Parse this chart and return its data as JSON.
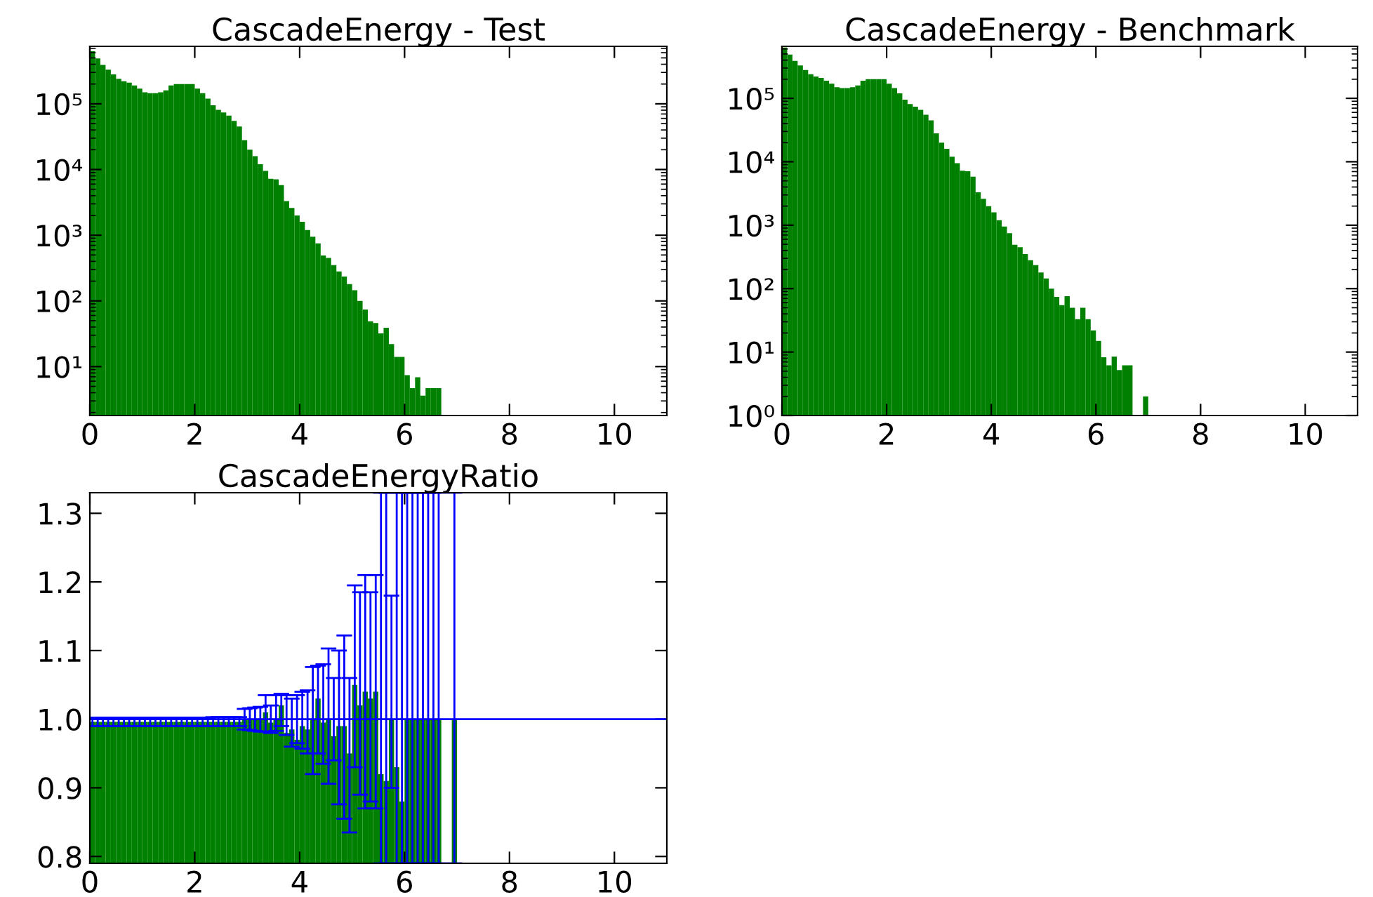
{
  "chart_data": [
    {
      "type": "histogram",
      "title": "CascadeEnergy - Test",
      "color": "#008000",
      "log": "y",
      "bins": [
        0,
        0.1,
        0.2,
        0.3,
        0.4,
        0.5,
        0.6,
        0.7,
        0.8,
        0.9,
        1.0,
        1.1,
        1.2,
        1.3,
        1.4,
        1.5,
        1.6,
        1.7,
        1.8,
        1.9,
        2.0,
        2.1,
        2.2,
        2.3,
        2.4,
        2.5,
        2.6,
        2.7,
        2.8,
        2.9,
        3.0,
        3.1,
        3.2,
        3.3,
        3.4,
        3.5,
        3.6,
        3.7,
        3.8,
        3.9,
        4.0,
        4.1,
        4.2,
        4.3,
        4.4,
        4.5,
        4.6,
        4.7,
        4.8,
        4.9,
        5.0,
        5.1,
        5.2,
        5.3,
        5.4,
        5.5,
        5.6,
        5.7,
        5.8,
        5.9,
        6.0,
        6.1,
        6.2,
        6.3,
        6.4,
        6.5,
        6.6,
        6.7,
        6.8,
        6.9,
        7.0
      ],
      "values": [
        630000,
        490000,
        390000,
        330000,
        280000,
        240000,
        220000,
        210000,
        190000,
        170000,
        150000,
        145000,
        145000,
        150000,
        160000,
        190000,
        200000,
        200000,
        200000,
        200000,
        170000,
        145000,
        120000,
        95000,
        81000,
        74000,
        66000,
        55000,
        45000,
        28000,
        20000,
        16000,
        12000,
        9500,
        7200,
        7100,
        5800,
        3300,
        2600,
        2000,
        1600,
        1200,
        950,
        750,
        490,
        450,
        350,
        280,
        235,
        180,
        145,
        100,
        74,
        49,
        46,
        32,
        39,
        22,
        14,
        14,
        7.4,
        4.7,
        6.9,
        3.6,
        4.7,
        4.7,
        4.7,
        null,
        null,
        null
      ],
      "xlim": [
        0,
        11
      ],
      "xticks": [
        0,
        2,
        4,
        6,
        8,
        10
      ],
      "ylim": [
        1.8,
        750000
      ],
      "yticks": [
        {
          "value": 10,
          "label": "10¹"
        },
        {
          "value": 100,
          "label": "10²"
        },
        {
          "value": 1000,
          "label": "10³"
        },
        {
          "value": 10000,
          "label": "10⁴"
        },
        {
          "value": 100000,
          "label": "10⁵"
        }
      ],
      "grid": false,
      "legend": false
    },
    {
      "type": "histogram",
      "title": "CascadeEnergy - Benchmark",
      "color": "#008000",
      "log": "y",
      "bins": [
        0,
        0.1,
        0.2,
        0.3,
        0.4,
        0.5,
        0.6,
        0.7,
        0.8,
        0.9,
        1.0,
        1.1,
        1.2,
        1.3,
        1.4,
        1.5,
        1.6,
        1.7,
        1.8,
        1.9,
        2.0,
        2.1,
        2.2,
        2.3,
        2.4,
        2.5,
        2.6,
        2.7,
        2.8,
        2.9,
        3.0,
        3.1,
        3.2,
        3.3,
        3.4,
        3.5,
        3.6,
        3.7,
        3.8,
        3.9,
        4.0,
        4.1,
        4.2,
        4.3,
        4.4,
        4.5,
        4.6,
        4.7,
        4.8,
        4.9,
        5.0,
        5.1,
        5.2,
        5.3,
        5.4,
        5.5,
        5.6,
        5.7,
        5.8,
        5.9,
        6.0,
        6.1,
        6.2,
        6.3,
        6.4,
        6.5,
        6.6,
        6.7,
        6.8,
        6.9,
        7.0
      ],
      "values": [
        630000,
        490000,
        390000,
        330000,
        280000,
        240000,
        220000,
        210000,
        190000,
        170000,
        150000,
        145000,
        145000,
        150000,
        160000,
        190000,
        200000,
        200000,
        200000,
        200000,
        170000,
        145000,
        120000,
        95000,
        81000,
        74000,
        66000,
        55000,
        45000,
        28000,
        20000,
        16000,
        12000,
        9500,
        7200,
        7100,
        5800,
        3300,
        2600,
        2000,
        1600,
        1200,
        950,
        750,
        490,
        450,
        350,
        280,
        235,
        180,
        145,
        100,
        74,
        55,
        76,
        50,
        33,
        50,
        33,
        22,
        15,
        8.3,
        6.2,
        8.5,
        5.2,
        6.2,
        6.2,
        null,
        null,
        2
      ],
      "xlim": [
        0,
        11
      ],
      "xticks": [
        0,
        2,
        4,
        6,
        8,
        10
      ],
      "ylim": [
        1,
        660000
      ],
      "yticks": [
        {
          "value": 1,
          "label": "10⁰"
        },
        {
          "value": 10,
          "label": "10¹"
        },
        {
          "value": 100,
          "label": "10²"
        },
        {
          "value": 1000,
          "label": "10³"
        },
        {
          "value": 10000,
          "label": "10⁴"
        },
        {
          "value": 100000,
          "label": "10⁵"
        }
      ],
      "grid": false,
      "legend": false
    },
    {
      "type": "histogram",
      "title": "CascadeEnergyRatio",
      "color": "#008000",
      "bins": [
        0,
        0.1,
        0.2,
        0.3,
        0.4,
        0.5,
        0.6,
        0.7,
        0.8,
        0.9,
        1.0,
        1.1,
        1.2,
        1.3,
        1.4,
        1.5,
        1.6,
        1.7,
        1.8,
        1.9,
        2.0,
        2.1,
        2.2,
        2.3,
        2.4,
        2.5,
        2.6,
        2.7,
        2.8,
        2.9,
        3.0,
        3.1,
        3.2,
        3.3,
        3.4,
        3.5,
        3.6,
        3.7,
        3.8,
        3.9,
        4.0,
        4.1,
        4.2,
        4.3,
        4.4,
        4.5,
        4.6,
        4.7,
        4.8,
        4.9,
        5.0,
        5.1,
        5.2,
        5.3,
        5.4,
        5.5,
        5.6,
        5.7,
        5.8,
        5.9,
        6.0,
        6.1,
        6.2,
        6.3,
        6.4,
        6.5,
        6.6,
        6.7,
        6.8,
        6.9,
        7.0
      ],
      "values": [
        0.996,
        0.996,
        0.996,
        0.996,
        0.996,
        0.996,
        0.996,
        0.996,
        0.996,
        0.996,
        0.996,
        0.996,
        0.996,
        0.996,
        0.996,
        0.996,
        0.996,
        0.996,
        0.996,
        0.996,
        0.996,
        0.996,
        0.996,
        0.996,
        0.996,
        0.996,
        0.996,
        0.996,
        0.996,
        1.0,
        1.0,
        1.0,
        1.0,
        1.01,
        0.995,
        1.0,
        1.02,
        0.98,
        0.985,
        0.97,
        0.99,
        0.985,
        1.0,
        1.03,
        0.995,
        1.0,
        0.975,
        0.99,
        0.99,
        0.95,
        1.05,
        1.02,
        1.04,
        1.03,
        1.04,
        0.92,
        0.91,
        1.0,
        0.93,
        0.88,
        1.0,
        1.0,
        1.0,
        1.0,
        1.0,
        1.0,
        1.0,
        null,
        null,
        1.0
      ],
      "errors": [
        [
          0.99,
          1.002
        ],
        [
          0.99,
          1.002
        ],
        [
          0.99,
          1.002
        ],
        [
          0.99,
          1.002
        ],
        [
          0.99,
          1.002
        ],
        [
          0.99,
          1.002
        ],
        [
          0.99,
          1.002
        ],
        [
          0.99,
          1.002
        ],
        [
          0.99,
          1.002
        ],
        [
          0.99,
          1.002
        ],
        [
          0.99,
          1.002
        ],
        [
          0.99,
          1.002
        ],
        [
          0.99,
          1.002
        ],
        [
          0.99,
          1.002
        ],
        [
          0.99,
          1.002
        ],
        [
          0.99,
          1.002
        ],
        [
          0.99,
          1.002
        ],
        [
          0.99,
          1.002
        ],
        [
          0.99,
          1.002
        ],
        [
          0.99,
          1.002
        ],
        [
          0.99,
          1.002
        ],
        [
          0.99,
          1.002
        ],
        [
          0.99,
          1.002
        ],
        [
          0.99,
          1.003
        ],
        [
          0.99,
          1.003
        ],
        [
          0.99,
          1.003
        ],
        [
          0.99,
          1.003
        ],
        [
          0.99,
          1.003
        ],
        [
          0.99,
          1.003
        ],
        [
          0.985,
          1.015
        ],
        [
          0.984,
          1.016
        ],
        [
          0.983,
          1.017
        ],
        [
          0.982,
          1.018
        ],
        [
          0.982,
          1.035
        ],
        [
          0.98,
          1.02
        ],
        [
          0.983,
          1.035
        ],
        [
          0.99,
          1.037
        ],
        [
          0.977,
          1.035
        ],
        [
          0.96,
          1.03
        ],
        [
          0.965,
          1.035
        ],
        [
          0.957,
          1.04
        ],
        [
          0.95,
          1.042
        ],
        [
          0.92,
          1.076
        ],
        [
          0.95,
          1.078
        ],
        [
          0.935,
          1.08
        ],
        [
          0.906,
          1.103
        ],
        [
          0.94,
          1.06
        ],
        [
          0.876,
          1.1
        ],
        [
          0.855,
          1.122
        ],
        [
          0.835,
          1.06
        ],
        [
          0.93,
          1.195
        ],
        [
          0.89,
          1.185
        ],
        [
          0.87,
          1.21
        ],
        [
          0.88,
          1.185
        ],
        [
          0.87,
          1.21
        ],
        [
          0.79,
          1.33
        ],
        [
          0.79,
          1.33
        ],
        [
          0.9,
          1.18
        ],
        [
          0.79,
          1.33
        ],
        [
          0.79,
          1.33
        ],
        [
          0.79,
          1.33
        ],
        [
          0.79,
          1.33
        ],
        [
          0.79,
          1.33
        ],
        [
          0.79,
          1.33
        ],
        [
          0.79,
          1.33
        ],
        [
          0.79,
          1.33
        ],
        [
          0.79,
          1.33
        ],
        null,
        null,
        [
          0.79,
          1.33
        ]
      ],
      "xlim": [
        0,
        11
      ],
      "xticks": [
        0,
        2,
        4,
        6,
        8,
        10
      ],
      "ylim": [
        0.79,
        1.33
      ],
      "yticks": [
        0.8,
        0.9,
        {
          "value": 1.0,
          "label": "1.0"
        },
        1.1,
        1.2,
        1.3
      ],
      "ref_lines": [
        {
          "axis": "y",
          "value": 1.0,
          "color": "#0000ff"
        }
      ],
      "grid": false,
      "legend": false
    }
  ]
}
